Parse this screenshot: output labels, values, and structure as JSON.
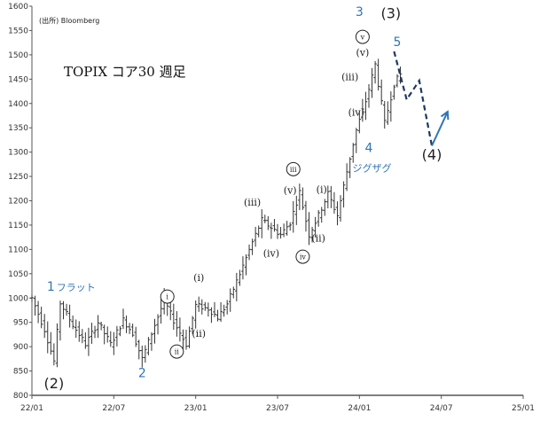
{
  "chart_data": {
    "type": "ohlc",
    "title": "TOPIX コア30 週足",
    "source": "(出所) Bloomberg",
    "ylim": [
      800,
      1600
    ],
    "yticks": [
      "800",
      "850",
      "900",
      "950",
      "1000",
      "1050",
      "1100",
      "1150",
      "1200",
      "1250",
      "1300",
      "1350",
      "1400",
      "1450",
      "1500",
      "1550",
      "1600"
    ],
    "xticks": [
      "22/01",
      "22/07",
      "23/01",
      "23/07",
      "24/01",
      "24/07",
      "25/01"
    ],
    "trend_anchors": [
      [
        0,
        1000
      ],
      [
        4,
        935
      ],
      [
        7,
        870
      ],
      [
        9,
        990
      ],
      [
        13,
        945
      ],
      [
        17,
        905
      ],
      [
        21,
        950
      ],
      [
        25,
        905
      ],
      [
        29,
        955
      ],
      [
        32,
        928
      ],
      [
        35,
        875
      ],
      [
        39,
        945
      ],
      [
        42,
        995
      ],
      [
        46,
        940
      ],
      [
        49,
        905
      ],
      [
        52,
        985
      ],
      [
        56,
        978
      ],
      [
        59,
        960
      ],
      [
        62,
        988
      ],
      [
        66,
        1050
      ],
      [
        70,
        1115
      ],
      [
        73,
        1160
      ],
      [
        76,
        1145
      ],
      [
        79,
        1130
      ],
      [
        82,
        1155
      ],
      [
        85,
        1218
      ],
      [
        88,
        1130
      ],
      [
        91,
        1170
      ],
      [
        94,
        1215
      ],
      [
        97,
        1170
      ],
      [
        100,
        1260
      ],
      [
        103,
        1345
      ],
      [
        106,
        1405
      ],
      [
        109,
        1480
      ],
      [
        112,
        1360
      ],
      [
        115,
        1440
      ],
      [
        117,
        1460
      ]
    ],
    "annotations_blue": [
      {
        "text": "1",
        "x": 6,
        "y": 1015
      },
      {
        "text": "フラット",
        "x": 14,
        "y": 1015
      },
      {
        "text": "2",
        "x": 35,
        "y": 837
      },
      {
        "text": "3",
        "x": 104,
        "y": 1580
      },
      {
        "text": "5",
        "x": 116,
        "y": 1518
      },
      {
        "text": "4",
        "x": 107,
        "y": 1300
      },
      {
        "text": "ジグザグ",
        "x": 108,
        "y": 1260
      }
    ],
    "annotations_black": [
      {
        "text": "(2)",
        "x": 7,
        "y": 815
      },
      {
        "text": "(3)",
        "x": 114,
        "y": 1575
      },
      {
        "text": "(4)",
        "x": 127,
        "y": 1285
      }
    ],
    "annotations_roman": [
      {
        "text": "(i)",
        "x": 53,
        "y": 1035
      },
      {
        "text": "(ii)",
        "x": 53,
        "y": 920
      },
      {
        "text": "(iii)",
        "x": 70,
        "y": 1190
      },
      {
        "text": "(iv)",
        "x": 76,
        "y": 1085
      },
      {
        "text": "(v)",
        "x": 82,
        "y": 1215
      },
      {
        "text": "(i)",
        "x": 92,
        "y": 1216
      },
      {
        "text": "(ii)",
        "x": 91,
        "y": 1116
      },
      {
        "text": "(iii)",
        "x": 101,
        "y": 1448
      },
      {
        "text": "(iv)",
        "x": 103,
        "y": 1375
      },
      {
        "text": "(v)",
        "x": 105,
        "y": 1498
      }
    ],
    "annotations_circled": [
      {
        "text": "i",
        "x": 43,
        "y": 1003
      },
      {
        "text": "ii",
        "x": 46,
        "y": 890
      },
      {
        "text": "iii",
        "x": 83,
        "y": 1265
      },
      {
        "text": "iv",
        "x": 86,
        "y": 1085
      },
      {
        "text": "v",
        "x": 105,
        "y": 1537
      }
    ],
    "forecast_dashed": [
      [
        115,
        1507
      ],
      [
        119,
        1408
      ],
      [
        123,
        1447
      ],
      [
        127,
        1313
      ]
    ],
    "forecast_arrow": [
      [
        127,
        1313
      ],
      [
        132,
        1383
      ]
    ]
  }
}
